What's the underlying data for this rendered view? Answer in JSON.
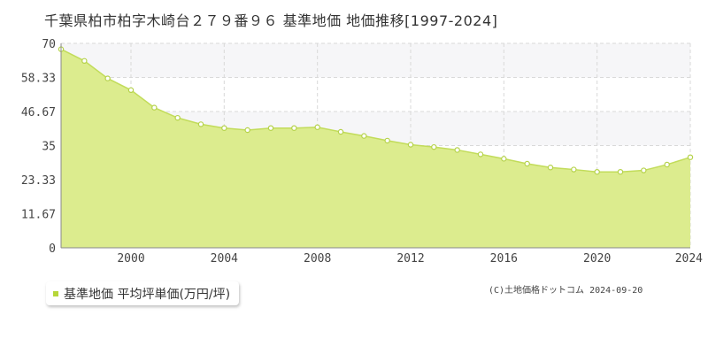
{
  "chart_data": {
    "type": "area",
    "title": "千葉県柏市柏字木崎台２７９番９６ 基準地価 地価推移[1997-2024]",
    "x": [
      1997,
      1998,
      1999,
      2000,
      2001,
      2002,
      2003,
      2004,
      2005,
      2006,
      2007,
      2008,
      2009,
      2010,
      2011,
      2012,
      2013,
      2014,
      2015,
      2016,
      2017,
      2018,
      2019,
      2020,
      2021,
      2022,
      2023,
      2024
    ],
    "series": [
      {
        "name": "基準地価 平均坪単価(万円/坪)",
        "values": [
          68.0,
          64.0,
          58.0,
          54.0,
          48.0,
          44.5,
          42.3,
          41.0,
          40.3,
          41.0,
          41.0,
          41.3,
          39.7,
          38.3,
          36.7,
          35.3,
          34.5,
          33.5,
          32.0,
          30.5,
          28.8,
          27.5,
          26.8,
          26.0,
          26.0,
          26.5,
          28.5,
          31.0
        ]
      }
    ],
    "xlim": [
      1997,
      2024
    ],
    "ylim": [
      0,
      70
    ],
    "y_ticks": [
      "0",
      "11.67",
      "23.33",
      "35",
      "46.67",
      "58.33",
      "70"
    ],
    "x_ticks": [
      "2000",
      "2004",
      "2008",
      "2012",
      "2016",
      "2020",
      "2024"
    ],
    "xlabel": "",
    "ylabel": "",
    "grid": true,
    "legend_position": "bottom-left"
  },
  "credit": "(C)土地価格ドットコム 2024-09-20",
  "colors": {
    "fill": "#dcec8e",
    "line": "#c2dc5a",
    "point_fill": "#ffffff",
    "point_stroke": "#b5d24a",
    "band": "#f6f6f8",
    "grid": "#d9d9d9",
    "axis": "#888888",
    "legend_swatch": "#b6d63a"
  }
}
